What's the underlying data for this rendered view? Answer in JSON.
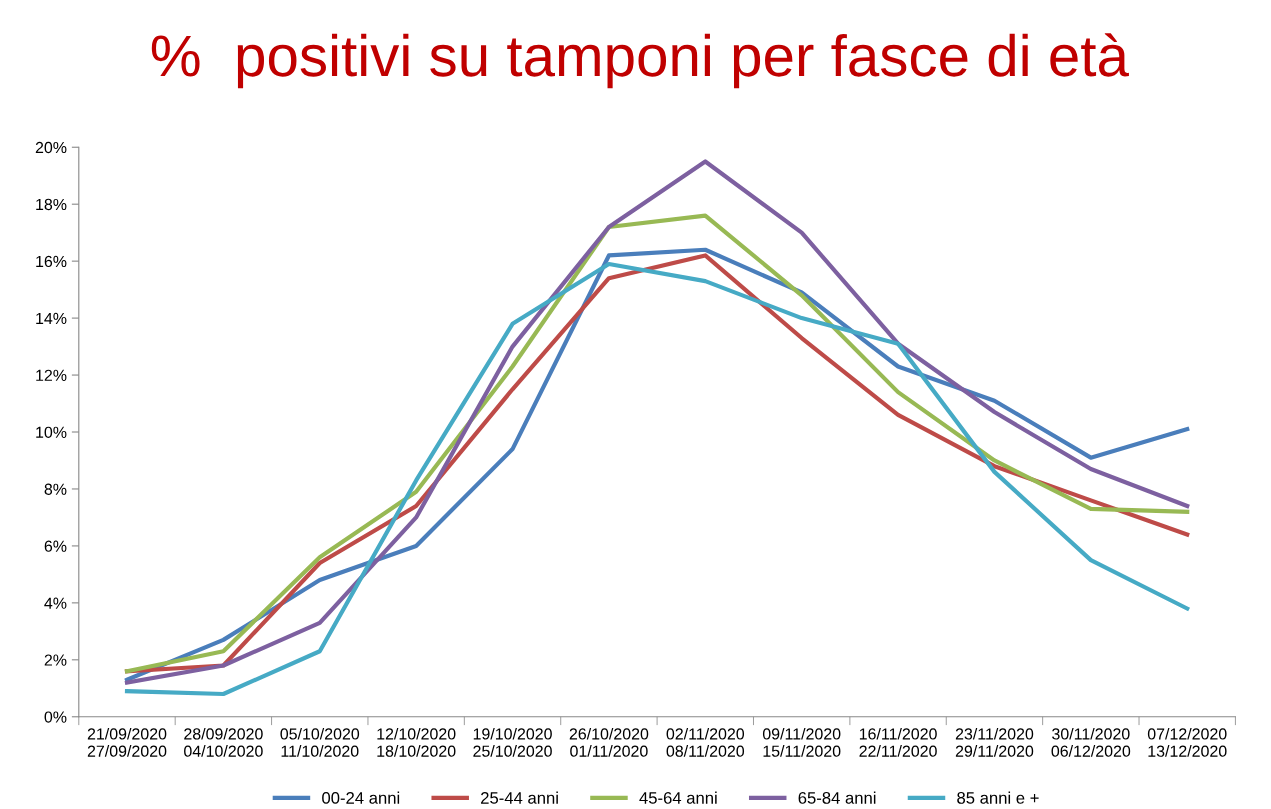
{
  "chart_data": {
    "type": "line",
    "title": "%  positivi su tamponi per fasce di età",
    "categories": [
      "21/09/2020\n27/09/2020",
      "28/09/2020\n04/10/2020",
      "05/10/2020\n11/10/2020",
      "12/10/2020\n18/10/2020",
      "19/10/2020\n25/10/2020",
      "26/10/2020\n01/11/2020",
      "02/11/2020\n08/11/2020",
      "09/11/2020\n15/11/2020",
      "16/11/2020\n22/11/2020",
      "23/11/2020\n29/11/2020",
      "30/11/2020\n06/12/2020",
      "07/12/2020\n13/12/2020"
    ],
    "series": [
      {
        "name": "00-24 anni",
        "color": "#4a7ebb",
        "values": [
          1.3,
          2.7,
          4.8,
          6.0,
          9.4,
          16.2,
          16.4,
          14.9,
          12.3,
          11.1,
          9.1,
          10.1
        ]
      },
      {
        "name": "25-44 anni",
        "color": "#be4b48",
        "values": [
          1.6,
          1.8,
          5.4,
          7.4,
          11.5,
          15.4,
          16.2,
          13.3,
          10.6,
          8.8,
          7.6,
          6.4
        ]
      },
      {
        "name": "45-64 anni",
        "color": "#98b954",
        "values": [
          1.6,
          2.3,
          5.6,
          7.9,
          12.3,
          17.2,
          17.6,
          14.8,
          11.4,
          9.0,
          7.3,
          7.2
        ]
      },
      {
        "name": "65-84 anni",
        "color": "#7d60a0",
        "values": [
          1.2,
          1.8,
          3.3,
          7.0,
          13.0,
          17.2,
          19.5,
          17.0,
          13.1,
          10.7,
          8.7,
          7.4
        ]
      },
      {
        "name": "85 anni e +",
        "color": "#46aac5",
        "values": [
          0.9,
          0.8,
          2.3,
          8.3,
          13.8,
          15.9,
          15.3,
          14.0,
          13.1,
          8.6,
          5.5,
          3.8
        ]
      }
    ],
    "ylim": [
      0,
      20
    ],
    "yticks": [
      {
        "value": 0,
        "label": "0%"
      },
      {
        "value": 2,
        "label": "2%"
      },
      {
        "value": 4,
        "label": "4%"
      },
      {
        "value": 6,
        "label": "6%"
      },
      {
        "value": 8,
        "label": "8%"
      },
      {
        "value": 10,
        "label": "10%"
      },
      {
        "value": 12,
        "label": "12%"
      },
      {
        "value": 14,
        "label": "14%"
      },
      {
        "value": 16,
        "label": "16%"
      },
      {
        "value": 18,
        "label": "18%"
      },
      {
        "value": 20,
        "label": "20%"
      }
    ],
    "grid": false,
    "legend": "bottom",
    "marker": "none",
    "line_style": "solid"
  }
}
